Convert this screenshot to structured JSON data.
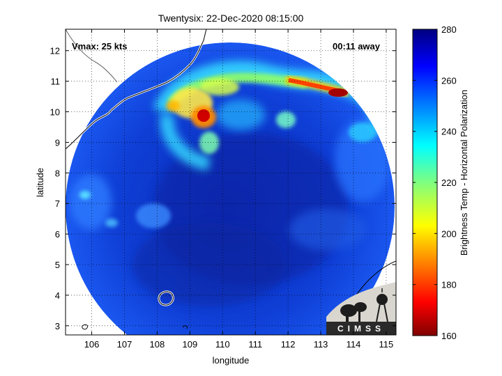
{
  "title": "Twentysix: 22-Dec-2020 08:15:00",
  "vmax_label": "Vmax: 25 kts",
  "time_away_label": "00:11 away",
  "xlabel": "longitude",
  "ylabel": "latitude",
  "colorbar_label": "Brightness Temp - Horizontal Polarization",
  "logo_text": "CIMSS",
  "x_ticks": [
    "106",
    "107",
    "108",
    "109",
    "110",
    "111",
    "112",
    "113",
    "114",
    "115"
  ],
  "y_ticks": [
    "3",
    "4",
    "5",
    "6",
    "7",
    "8",
    "9",
    "10",
    "11",
    "12"
  ],
  "colorbar_ticks": [
    "160",
    "180",
    "200",
    "220",
    "240",
    "260",
    "280"
  ],
  "chart_data": {
    "type": "heatmap",
    "title": "Twentysix: 22-Dec-2020 08:15:00",
    "xlabel": "longitude",
    "ylabel": "latitude",
    "xlim": [
      105.2,
      115.3
    ],
    "ylim": [
      2.7,
      12.7
    ],
    "colorbar": {
      "label": "Brightness Temp - Horizontal Polarization",
      "range": [
        160,
        280
      ]
    },
    "grid": true,
    "swath_center": {
      "lon": 110.5,
      "lat": 7.1
    },
    "features": [
      {
        "name": "cold band",
        "lon": 113.4,
        "lat": 10.5,
        "min_temp": 172
      },
      {
        "name": "cold core",
        "lon": 109.4,
        "lat": 9.8,
        "min_temp": 182
      },
      {
        "name": "convective arc",
        "lon": 110.5,
        "lat": 10.8,
        "min_temp": 205
      }
    ]
  }
}
